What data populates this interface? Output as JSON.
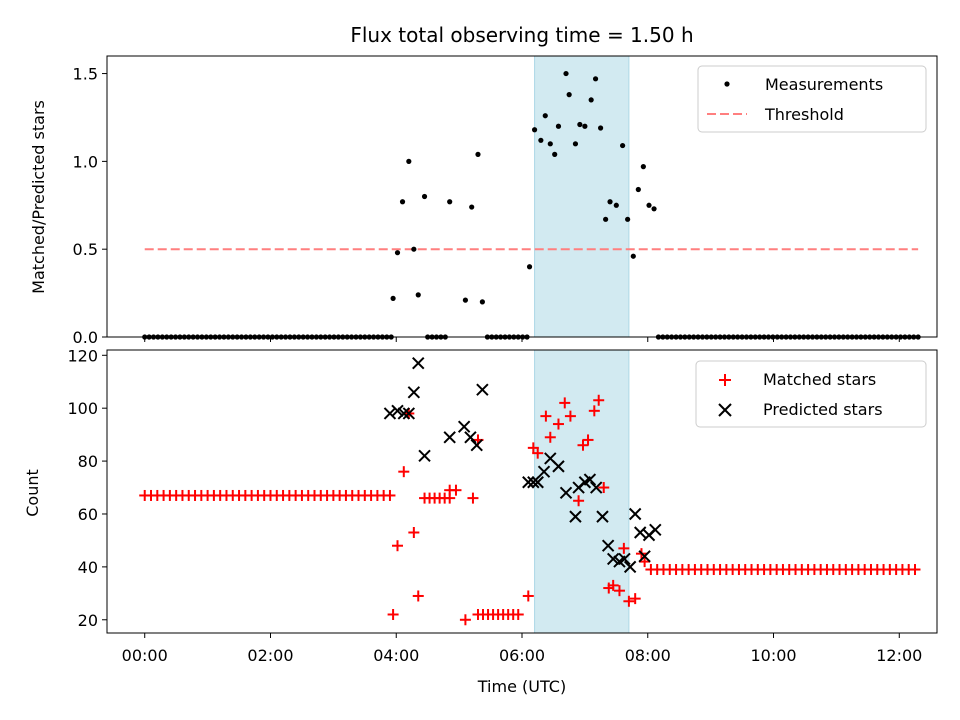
{
  "chart_data": [
    {
      "type": "scatter",
      "title": "Flux total observing time = 1.50 h",
      "xlabel": "",
      "ylabel": "Matched/Predicted stars",
      "ylim": [
        0,
        1.6
      ],
      "yticks": [
        0.0,
        0.5,
        1.0,
        1.5
      ],
      "ytick_labels": [
        "0.0",
        "0.5",
        "1.0",
        "1.5"
      ],
      "xlim": [
        -0.6,
        12.6
      ],
      "xticks": [
        0,
        2,
        4,
        6,
        8,
        10,
        12
      ],
      "highlight_span": [
        6.2,
        7.7
      ],
      "legend": {
        "location": "upper right",
        "entries": [
          "Measurements",
          "Threshold"
        ]
      },
      "threshold": {
        "name": "Threshold",
        "x_range": [
          0,
          12.3
        ],
        "value": 0.5,
        "color": "#ff7f7f"
      },
      "series": [
        {
          "name": "Measurements",
          "marker": "dot",
          "color": "#000000",
          "zero_runs": [
            [
              0,
              3.95,
              0.07
            ],
            [
              4.5,
              4.8,
              0.07
            ],
            [
              5.45,
              6.1,
              0.07
            ],
            [
              8.17,
              12.3,
              0.07
            ]
          ],
          "points": [
            [
              3.95,
              0.22
            ],
            [
              4.02,
              0.48
            ],
            [
              4.1,
              0.77
            ],
            [
              4.2,
              1.0
            ],
            [
              4.28,
              0.5
            ],
            [
              4.35,
              0.24
            ],
            [
              4.45,
              0.8
            ],
            [
              4.85,
              0.77
            ],
            [
              5.1,
              0.21
            ],
            [
              5.2,
              0.74
            ],
            [
              5.3,
              1.04
            ],
            [
              5.37,
              0.2
            ],
            [
              6.12,
              0.4
            ],
            [
              6.2,
              1.18
            ],
            [
              6.3,
              1.12
            ],
            [
              6.37,
              1.26
            ],
            [
              6.45,
              1.1
            ],
            [
              6.52,
              1.04
            ],
            [
              6.58,
              1.2
            ],
            [
              6.7,
              1.5
            ],
            [
              6.75,
              1.38
            ],
            [
              6.85,
              1.1
            ],
            [
              6.92,
              1.21
            ],
            [
              7.0,
              1.2
            ],
            [
              7.1,
              1.35
            ],
            [
              7.17,
              1.47
            ],
            [
              7.25,
              1.19
            ],
            [
              7.33,
              0.67
            ],
            [
              7.4,
              0.77
            ],
            [
              7.5,
              0.75
            ],
            [
              7.6,
              1.09
            ],
            [
              7.68,
              0.67
            ],
            [
              7.77,
              0.46
            ],
            [
              7.85,
              0.84
            ],
            [
              7.93,
              0.97
            ],
            [
              8.02,
              0.75
            ],
            [
              8.1,
              0.73
            ]
          ]
        }
      ]
    },
    {
      "type": "scatter",
      "title": "",
      "xlabel": "Time (UTC)",
      "ylabel": "Count",
      "ylim": [
        15,
        122
      ],
      "yticks": [
        20,
        40,
        60,
        80,
        100,
        120
      ],
      "ytick_labels": [
        "20",
        "40",
        "60",
        "80",
        "100",
        "120"
      ],
      "xlim": [
        -0.6,
        12.6
      ],
      "xticks": [
        0,
        2,
        4,
        6,
        8,
        10,
        12
      ],
      "xtick_labels": [
        "00:00",
        "02:00",
        "04:00",
        "06:00",
        "08:00",
        "10:00",
        "12:00"
      ],
      "highlight_span": [
        6.2,
        7.7
      ],
      "legend": {
        "location": "upper right",
        "entries": [
          "Matched stars",
          "Predicted stars"
        ]
      },
      "series": [
        {
          "name": "Matched stars",
          "marker": "plus",
          "color": "#ff0000",
          "runs": [
            [
              0,
              3.9,
              0.1,
              67
            ],
            [
              8.05,
              12.3,
              0.1,
              39
            ],
            [
              5.3,
              6.0,
              0.08,
              22
            ],
            [
              4.45,
              4.85,
              0.08,
              66
            ]
          ],
          "points": [
            [
              3.95,
              22
            ],
            [
              4.02,
              48
            ],
            [
              4.12,
              76
            ],
            [
              4.2,
              98
            ],
            [
              4.28,
              53
            ],
            [
              4.35,
              29
            ],
            [
              4.85,
              69
            ],
            [
              4.95,
              69
            ],
            [
              5.1,
              20
            ],
            [
              5.22,
              66
            ],
            [
              5.3,
              88
            ],
            [
              6.1,
              29
            ],
            [
              6.18,
              85
            ],
            [
              6.25,
              83
            ],
            [
              6.38,
              97
            ],
            [
              6.45,
              89
            ],
            [
              6.58,
              94
            ],
            [
              6.68,
              102
            ],
            [
              6.77,
              97
            ],
            [
              6.9,
              65
            ],
            [
              6.97,
              86
            ],
            [
              7.05,
              88
            ],
            [
              7.15,
              99
            ],
            [
              7.22,
              103
            ],
            [
              7.3,
              70
            ],
            [
              7.38,
              32
            ],
            [
              7.45,
              33
            ],
            [
              7.55,
              31
            ],
            [
              7.62,
              47
            ],
            [
              7.7,
              27
            ],
            [
              7.8,
              28
            ],
            [
              7.9,
              45
            ],
            [
              7.95,
              42
            ]
          ]
        },
        {
          "name": "Predicted stars",
          "marker": "x",
          "color": "#000000",
          "points": [
            [
              3.9,
              98
            ],
            [
              4.02,
              99
            ],
            [
              4.12,
              98
            ],
            [
              4.2,
              98
            ],
            [
              4.28,
              106
            ],
            [
              4.35,
              117
            ],
            [
              4.45,
              82
            ],
            [
              4.85,
              89
            ],
            [
              5.08,
              93
            ],
            [
              5.18,
              89
            ],
            [
              5.28,
              86
            ],
            [
              5.37,
              107
            ],
            [
              6.1,
              72
            ],
            [
              6.18,
              72
            ],
            [
              6.25,
              72
            ],
            [
              6.35,
              76
            ],
            [
              6.45,
              81
            ],
            [
              6.58,
              78
            ],
            [
              6.7,
              68
            ],
            [
              6.85,
              59
            ],
            [
              6.9,
              70
            ],
            [
              7.0,
              72
            ],
            [
              7.08,
              73
            ],
            [
              7.18,
              70
            ],
            [
              7.28,
              59
            ],
            [
              7.37,
              48
            ],
            [
              7.45,
              43
            ],
            [
              7.55,
              42
            ],
            [
              7.63,
              43
            ],
            [
              7.72,
              40
            ],
            [
              7.8,
              60
            ],
            [
              7.88,
              53
            ],
            [
              7.95,
              44
            ],
            [
              8.02,
              52
            ],
            [
              8.12,
              54
            ]
          ]
        }
      ]
    }
  ],
  "colors": {
    "highlight": "#add8e6",
    "matched": "#ff0000",
    "predicted": "#000000",
    "measurements": "#000000",
    "threshold": "#ff7f7f"
  }
}
